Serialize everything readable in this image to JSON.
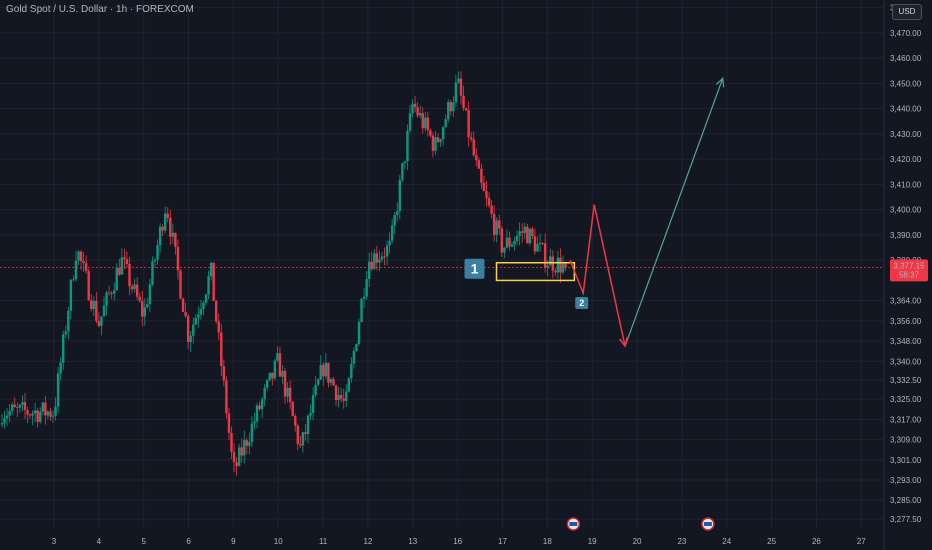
{
  "header": {
    "title": "Gold Spot / U.S. Dollar · 1h · FOREXCOM",
    "currency": "USD"
  },
  "price_label": {
    "price": "3,377.15",
    "countdown": "58:37"
  },
  "markers": {
    "box_label": "1",
    "target_label": "2"
  },
  "colors": {
    "background": "#131722",
    "up_candle": "#089981",
    "down_candle": "#f23645",
    "price_line": "#f23645",
    "box_border": "#f5d742",
    "projection_down": "#f23645",
    "projection_up": "#4fa89a",
    "marker_bg": "#3b7fa3"
  },
  "chart_data": {
    "type": "candlestick",
    "title": "Gold Spot / U.S. Dollar · 1h · FOREXCOM",
    "y_ticks": [
      "3,480.00",
      "3,470.00",
      "3,460.00",
      "3,450.00",
      "3,440.00",
      "3,430.00",
      "3,420.00",
      "3,410.00",
      "3,400.00",
      "3,390.00",
      "3,380.00",
      "3,364.00",
      "3,356.00",
      "3,348.00",
      "3,340.00",
      "3,332.50",
      "3,325.00",
      "3,317.00",
      "3,309.00",
      "3,301.00",
      "3,293.00",
      "3,285.00",
      "3,277.50"
    ],
    "x_ticks": [
      "3",
      "4",
      "5",
      "6",
      "9",
      "10",
      "11",
      "12",
      "13",
      "16",
      "17",
      "18",
      "19",
      "20",
      "23",
      "24",
      "25",
      "26",
      "27"
    ],
    "ylim": [
      3274,
      3483
    ],
    "current_price": 3377.15,
    "approx_price_path": [
      {
        "date": "3",
        "price": 3320
      },
      {
        "date": "3",
        "price": 3385
      },
      {
        "date": "4",
        "price": 3355
      },
      {
        "date": "4",
        "price": 3380
      },
      {
        "date": "5",
        "price": 3358
      },
      {
        "date": "5",
        "price": 3403
      },
      {
        "date": "6",
        "price": 3350
      },
      {
        "date": "6",
        "price": 3375
      },
      {
        "date": "9",
        "price": 3296
      },
      {
        "date": "10",
        "price": 3340
      },
      {
        "date": "10",
        "price": 3305
      },
      {
        "date": "11",
        "price": 3338
      },
      {
        "date": "11",
        "price": 3322
      },
      {
        "date": "12",
        "price": 3380
      },
      {
        "date": "12",
        "price": 3385
      },
      {
        "date": "13",
        "price": 3442
      },
      {
        "date": "13",
        "price": 3425
      },
      {
        "date": "16",
        "price": 3450
      },
      {
        "date": "16",
        "price": 3410
      },
      {
        "date": "17",
        "price": 3385
      },
      {
        "date": "17",
        "price": 3392
      },
      {
        "date": "18",
        "price": 3380
      },
      {
        "date": "18",
        "price": 3377.15
      }
    ],
    "consolidation_box": {
      "date_start": "17",
      "date_end": "18",
      "price_low": 3372,
      "price_high": 3379
    },
    "projection": [
      {
        "date": "18",
        "price": 3380
      },
      {
        "date": "19",
        "price": 3367
      },
      {
        "date": "19",
        "price": 3402
      },
      {
        "date": "20",
        "price": 3346
      },
      {
        "date": "24",
        "price": 3452
      }
    ],
    "event_icons_at": [
      "18",
      "23"
    ]
  }
}
